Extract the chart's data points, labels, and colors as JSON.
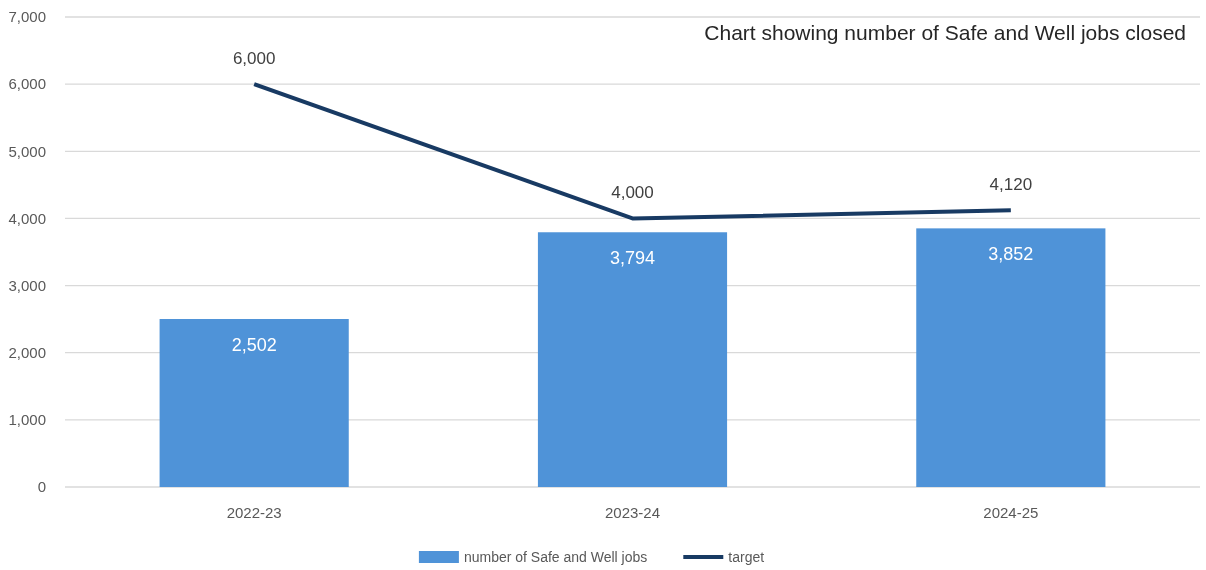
{
  "chart_data": {
    "type": "bar",
    "title": "Chart showing number of Safe and Well jobs closed",
    "categories": [
      "2022-23",
      "2023-24",
      "2024-25"
    ],
    "series": [
      {
        "name": "number of Safe and Well jobs",
        "color": "#4f93d8",
        "values": [
          2502,
          3794,
          3852
        ],
        "value_labels": [
          "2,502",
          "3,794",
          "3,852"
        ]
      },
      {
        "name": "target",
        "type": "line",
        "color": "#183a63",
        "values": [
          6000,
          4000,
          4120
        ],
        "value_labels": [
          "6,000",
          "4,000",
          "4,120"
        ]
      }
    ],
    "ylim": [
      0,
      7000
    ],
    "yticks": [
      {
        "value": 0,
        "label": "0"
      },
      {
        "value": 1000,
        "label": "1,000"
      },
      {
        "value": 2000,
        "label": "2,000"
      },
      {
        "value": 3000,
        "label": "3,000"
      },
      {
        "value": 4000,
        "label": "4,000"
      },
      {
        "value": 5000,
        "label": "5,000"
      },
      {
        "value": 6000,
        "label": "6,000"
      },
      {
        "value": 7000,
        "label": "7,000"
      }
    ],
    "grid": "y",
    "legend": "bottom",
    "marker": "none"
  }
}
